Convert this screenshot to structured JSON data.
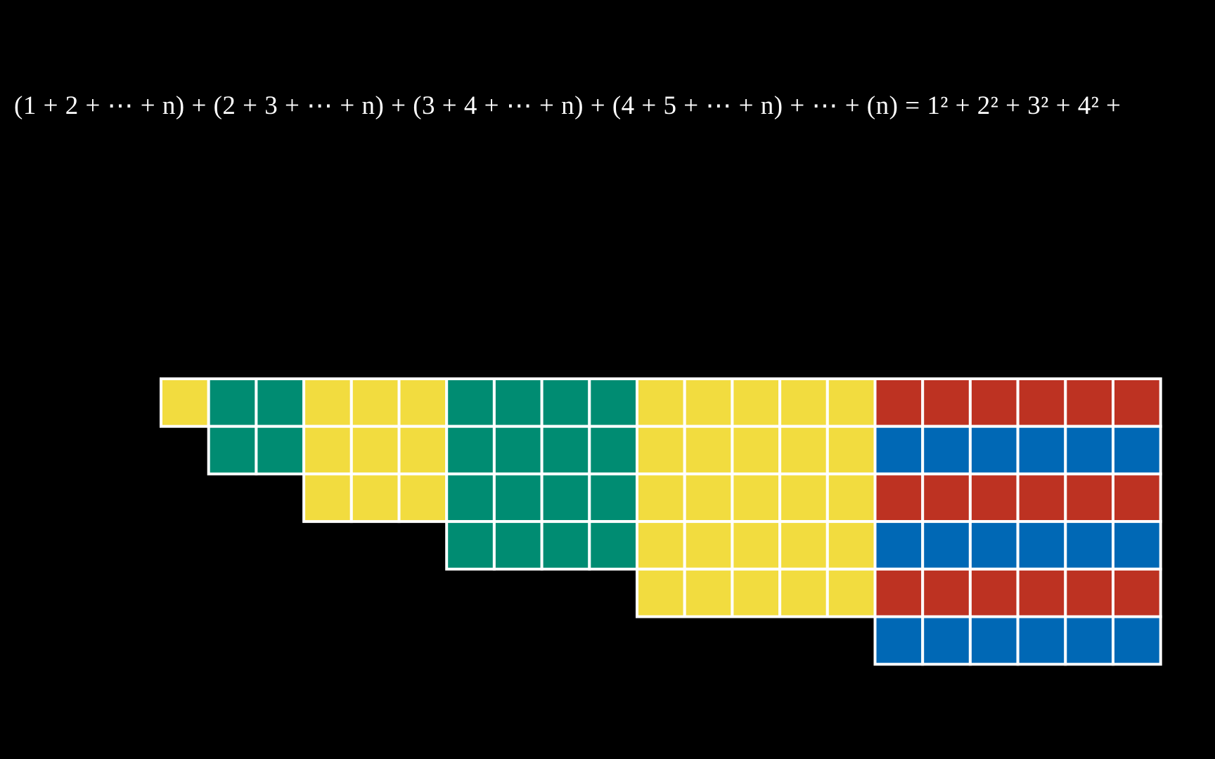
{
  "equation": "(1 + 2 + ⋯ + n) + (2 + 3 + ⋯ + n) + (3 + 4 + ⋯ + n) + (4 + 5 + ⋯ + n) + ⋯ + (n) = 1² + 2² + 3² + 4² +"
}
